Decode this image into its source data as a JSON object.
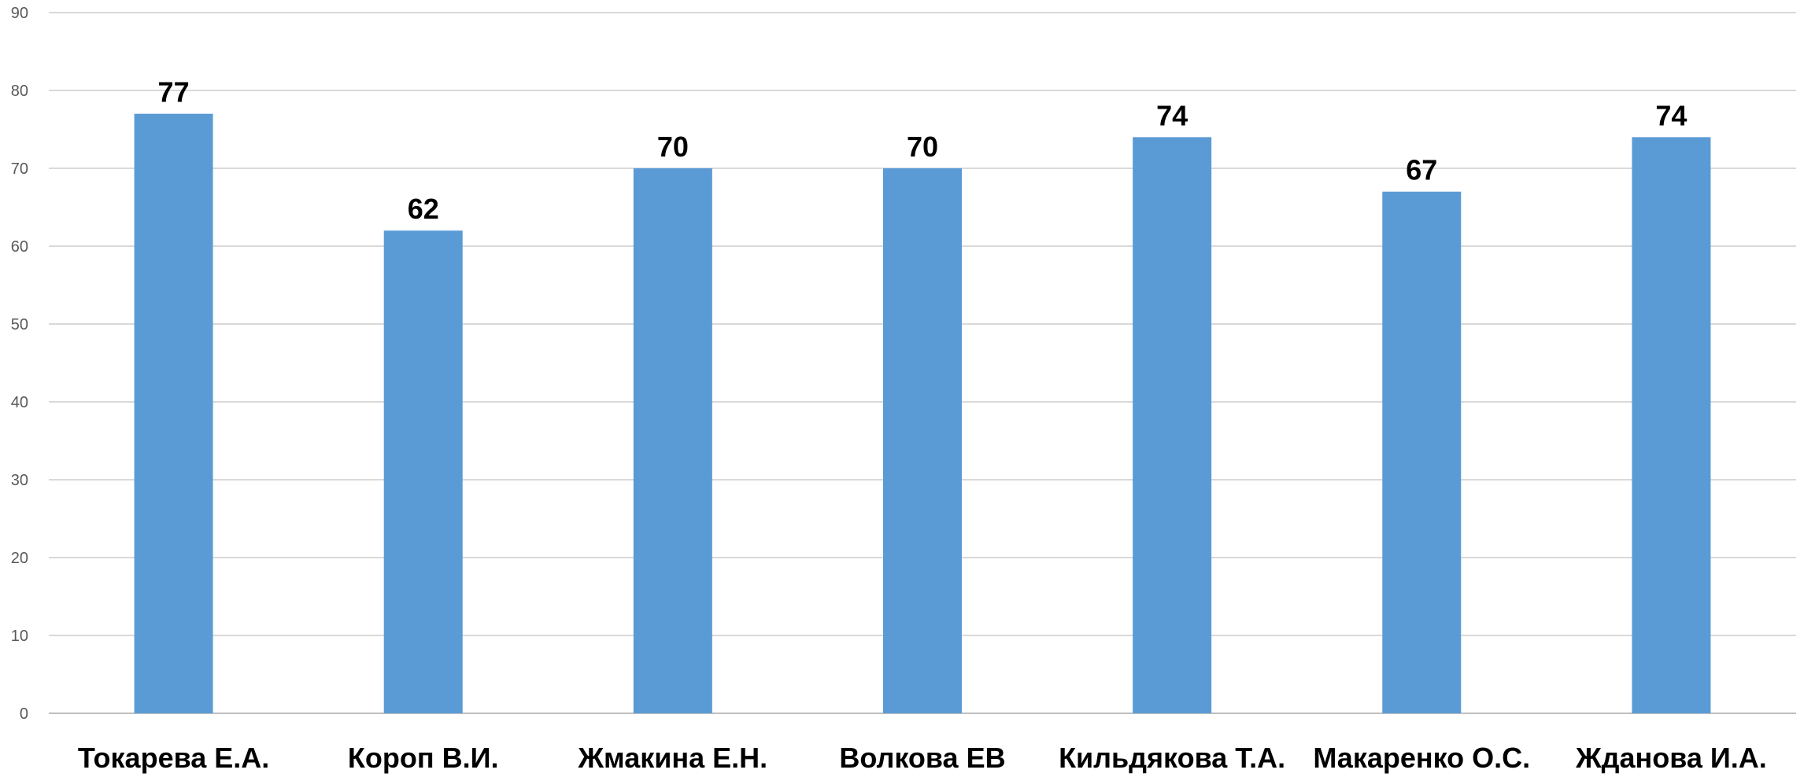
{
  "chart_data": {
    "type": "bar",
    "categories": [
      "Токарева Е.А.",
      "Короп В.И.",
      "Жмакина Е.Н.",
      "Волкова ЕВ",
      "Кильдякова Т.А.",
      "Макаренко О.С.",
      "Жданова И.А."
    ],
    "values": [
      77,
      62,
      70,
      70,
      74,
      67,
      74
    ],
    "ylim": [
      0,
      90
    ],
    "yticks": [
      0,
      10,
      20,
      30,
      40,
      50,
      60,
      70,
      80,
      90
    ],
    "grid": true,
    "data_labels": true,
    "title": "",
    "xlabel": "",
    "ylabel": ""
  },
  "colors": {
    "bar": "#5B9BD5",
    "grid": "#D9D9D9",
    "axis": "#BFBFBF"
  }
}
